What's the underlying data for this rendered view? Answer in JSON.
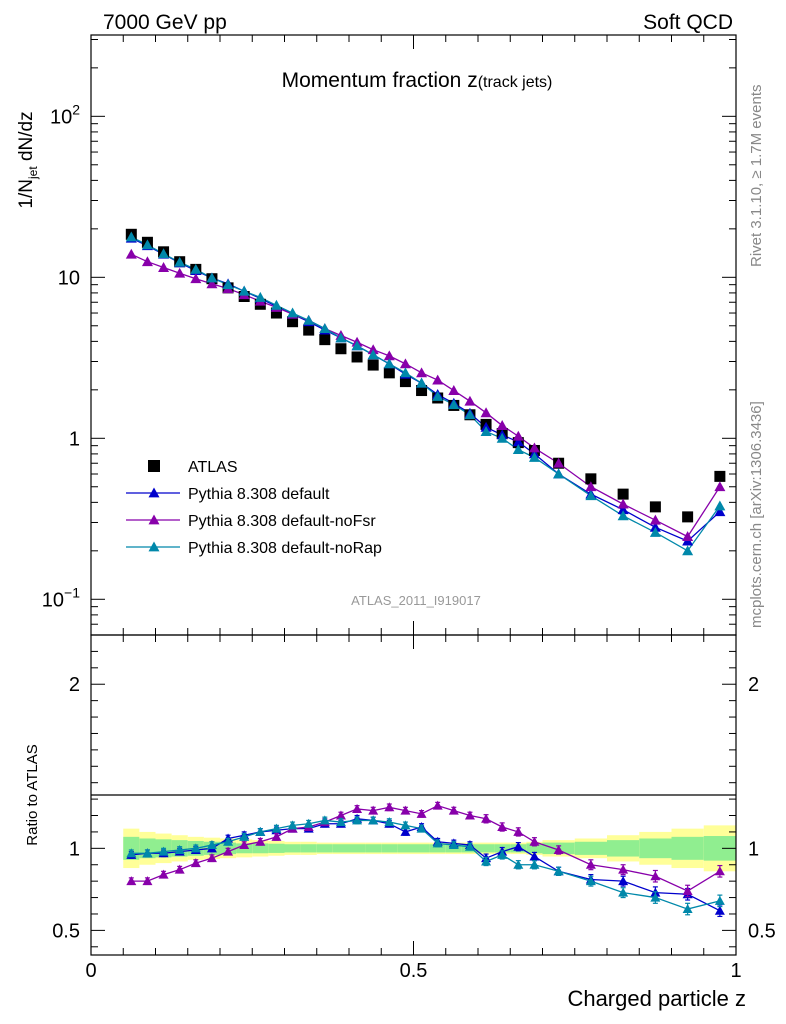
{
  "header": {
    "left_label": "7000 GeV pp",
    "right_label": "Soft QCD"
  },
  "side_text": {
    "rivet": "Rivet 3.1.10, ≥ 1.7M events",
    "mcplots": "mcplots.cern.ch [arXiv:1306.3436]"
  },
  "chart_data": [
    {
      "type": "scatter",
      "title_main": "Momentum fraction ",
      "title_var": "z",
      "title_sub": "(track jets)",
      "ylabel": "1/N_jet dN/dz",
      "ylabel_parts": {
        "pre": "1/N",
        "sub": "jet",
        "post": " dN/dz"
      },
      "yscale": "log",
      "ylim": [
        0.06,
        320
      ],
      "xlim": [
        0,
        1
      ],
      "yticks": [
        {
          "v": 0.1,
          "base": "10",
          "exp": "−1"
        },
        {
          "v": 1,
          "base": "1",
          "exp": ""
        },
        {
          "v": 10,
          "base": "10",
          "exp": ""
        },
        {
          "v": 100,
          "base": "10",
          "exp": "2"
        }
      ],
      "watermark": "ATLAS_2011_I919017",
      "legend_position": "lower-left",
      "legend": [
        "ATLAS",
        "Pythia 8.308 default",
        "Pythia 8.308 default-noFsr",
        "Pythia 8.308 default-noRap"
      ],
      "x": [
        0.0625,
        0.0875,
        0.1125,
        0.1375,
        0.1625,
        0.1875,
        0.2125,
        0.2375,
        0.2625,
        0.2875,
        0.3125,
        0.3375,
        0.3625,
        0.3875,
        0.4125,
        0.4375,
        0.4625,
        0.4875,
        0.5125,
        0.5375,
        0.5625,
        0.5875,
        0.6125,
        0.6375,
        0.6625,
        0.6875,
        0.725,
        0.775,
        0.825,
        0.875,
        0.925,
        0.975
      ],
      "series": [
        {
          "name": "ATLAS",
          "color": "#000000",
          "marker": "square",
          "values": [
            18.5,
            16.5,
            14.4,
            12.5,
            11.2,
            9.8,
            8.6,
            7.6,
            6.8,
            6.0,
            5.3,
            4.7,
            4.1,
            3.6,
            3.2,
            2.85,
            2.55,
            2.25,
            1.98,
            1.78,
            1.6,
            1.4,
            1.22,
            1.07,
            0.94,
            0.84,
            0.7,
            0.56,
            0.45,
            0.375,
            0.325,
            0.58
          ]
        },
        {
          "name": "Pythia 8.308 default",
          "color": "#0000cc",
          "marker": "triangle",
          "values": [
            17.5,
            15.7,
            13.9,
            12.3,
            11.0,
            9.9,
            9.1,
            8.2,
            7.4,
            6.6,
            5.9,
            5.3,
            4.7,
            4.2,
            3.75,
            3.3,
            2.9,
            2.5,
            2.2,
            1.87,
            1.65,
            1.43,
            1.17,
            1.05,
            0.95,
            0.8,
            0.6,
            0.45,
            0.36,
            0.28,
            0.23,
            0.35
          ]
        },
        {
          "name": "Pythia 8.308 default-noFsr",
          "color": "#8800aa",
          "marker": "triangle",
          "values": [
            13.9,
            12.5,
            11.5,
            10.6,
            9.8,
            9.1,
            8.5,
            7.8,
            7.1,
            6.5,
            5.9,
            5.4,
            4.8,
            4.35,
            3.95,
            3.55,
            3.25,
            2.9,
            2.55,
            2.3,
            1.98,
            1.7,
            1.44,
            1.2,
            1.03,
            0.87,
            0.7,
            0.5,
            0.39,
            0.31,
            0.245,
            0.5
          ]
        },
        {
          "name": "Pythia 8.308 default-noRap",
          "color": "#0088aa",
          "marker": "triangle",
          "values": [
            17.8,
            15.9,
            14.0,
            12.4,
            11.2,
            9.9,
            9.0,
            8.2,
            7.5,
            6.7,
            6.0,
            5.4,
            4.8,
            4.2,
            3.75,
            3.3,
            2.9,
            2.55,
            2.2,
            1.82,
            1.62,
            1.4,
            1.1,
            1.0,
            0.85,
            0.76,
            0.6,
            0.44,
            0.33,
            0.26,
            0.2,
            0.38
          ]
        }
      ]
    },
    {
      "type": "line",
      "ylabel": "Ratio to ATLAS",
      "xlabel": "Charged particle z",
      "xlim": [
        0,
        1
      ],
      "ylim": [
        0.35,
        2.3
      ],
      "xticks": [
        {
          "v": 0,
          "label": "0"
        },
        {
          "v": 0.5,
          "label": "0.5"
        },
        {
          "v": 1,
          "label": "1"
        }
      ],
      "yticks": [
        {
          "v": 0.5,
          "label": "0.5"
        },
        {
          "v": 1,
          "label": "1"
        },
        {
          "v": 2,
          "label": "2"
        }
      ],
      "reference_line": 1,
      "band_colors": {
        "stat": "#90ee90",
        "total": "#ffff99"
      },
      "band_edges": [
        0.05,
        0.075,
        0.1,
        0.125,
        0.15,
        0.175,
        0.2,
        0.225,
        0.25,
        0.275,
        0.3,
        0.325,
        0.35,
        0.375,
        0.4,
        0.425,
        0.45,
        0.475,
        0.5,
        0.525,
        0.55,
        0.575,
        0.6,
        0.625,
        0.65,
        0.675,
        0.7,
        0.75,
        0.8,
        0.85,
        0.9,
        0.95,
        1.0
      ],
      "band_stat": [
        0.07,
        0.06,
        0.055,
        0.05,
        0.045,
        0.04,
        0.035,
        0.03,
        0.03,
        0.028,
        0.025,
        0.025,
        0.025,
        0.025,
        0.025,
        0.025,
        0.025,
        0.025,
        0.025,
        0.025,
        0.025,
        0.025,
        0.025,
        0.025,
        0.025,
        0.03,
        0.035,
        0.04,
        0.05,
        0.06,
        0.07,
        0.075
      ],
      "band_total": [
        0.12,
        0.1,
        0.09,
        0.08,
        0.07,
        0.065,
        0.06,
        0.055,
        0.05,
        0.045,
        0.04,
        0.04,
        0.035,
        0.035,
        0.035,
        0.035,
        0.035,
        0.035,
        0.035,
        0.035,
        0.035,
        0.035,
        0.035,
        0.035,
        0.035,
        0.04,
        0.05,
        0.06,
        0.08,
        0.1,
        0.12,
        0.14
      ],
      "x": [
        0.0625,
        0.0875,
        0.1125,
        0.1375,
        0.1625,
        0.1875,
        0.2125,
        0.2375,
        0.2625,
        0.2875,
        0.3125,
        0.3375,
        0.3625,
        0.3875,
        0.4125,
        0.4375,
        0.4625,
        0.4875,
        0.5125,
        0.5375,
        0.5625,
        0.5875,
        0.6125,
        0.6375,
        0.6625,
        0.6875,
        0.725,
        0.775,
        0.825,
        0.875,
        0.925,
        0.975
      ],
      "series": [
        {
          "name": "Pythia 8.308 default",
          "color": "#0000cc",
          "values": [
            0.96,
            0.97,
            0.97,
            0.98,
            0.99,
            1.0,
            1.06,
            1.08,
            1.1,
            1.11,
            1.12,
            1.12,
            1.15,
            1.15,
            1.18,
            1.17,
            1.15,
            1.1,
            1.13,
            1.04,
            1.03,
            1.02,
            0.94,
            0.98,
            1.01,
            0.95,
            0.86,
            0.81,
            0.8,
            0.73,
            0.72,
            0.62
          ],
          "errors": [
            0.02,
            0.02,
            0.02,
            0.02,
            0.02,
            0.02,
            0.02,
            0.02,
            0.02,
            0.02,
            0.02,
            0.02,
            0.02,
            0.02,
            0.02,
            0.02,
            0.02,
            0.02,
            0.02,
            0.02,
            0.02,
            0.02,
            0.025,
            0.025,
            0.025,
            0.025,
            0.025,
            0.03,
            0.03,
            0.035,
            0.035,
            0.035
          ]
        },
        {
          "name": "Pythia 8.308 default-noFsr",
          "color": "#8800aa",
          "values": [
            0.8,
            0.8,
            0.84,
            0.87,
            0.91,
            0.94,
            0.98,
            1.02,
            1.04,
            1.07,
            1.12,
            1.13,
            1.16,
            1.2,
            1.24,
            1.23,
            1.25,
            1.23,
            1.21,
            1.26,
            1.23,
            1.2,
            1.18,
            1.13,
            1.1,
            1.04,
            0.99,
            0.9,
            0.87,
            0.83,
            0.74,
            0.86
          ],
          "errors": [
            0.02,
            0.02,
            0.02,
            0.02,
            0.02,
            0.02,
            0.02,
            0.02,
            0.02,
            0.02,
            0.02,
            0.02,
            0.02,
            0.02,
            0.02,
            0.02,
            0.02,
            0.02,
            0.02,
            0.02,
            0.02,
            0.02,
            0.025,
            0.025,
            0.025,
            0.025,
            0.025,
            0.03,
            0.03,
            0.035,
            0.035,
            0.035
          ]
        },
        {
          "name": "Pythia 8.308 default-noRap",
          "color": "#0088aa",
          "values": [
            0.97,
            0.97,
            0.98,
            0.99,
            1.0,
            1.02,
            1.04,
            1.07,
            1.1,
            1.12,
            1.14,
            1.15,
            1.17,
            1.16,
            1.17,
            1.17,
            1.16,
            1.14,
            1.12,
            1.03,
            1.02,
            1.01,
            0.92,
            0.96,
            0.9,
            0.9,
            0.86,
            0.8,
            0.73,
            0.7,
            0.63,
            0.68
          ],
          "errors": [
            0.02,
            0.02,
            0.02,
            0.02,
            0.02,
            0.02,
            0.02,
            0.02,
            0.02,
            0.02,
            0.02,
            0.02,
            0.02,
            0.02,
            0.02,
            0.02,
            0.02,
            0.02,
            0.02,
            0.02,
            0.02,
            0.02,
            0.025,
            0.025,
            0.025,
            0.025,
            0.025,
            0.03,
            0.03,
            0.035,
            0.035,
            0.035
          ]
        }
      ]
    }
  ]
}
